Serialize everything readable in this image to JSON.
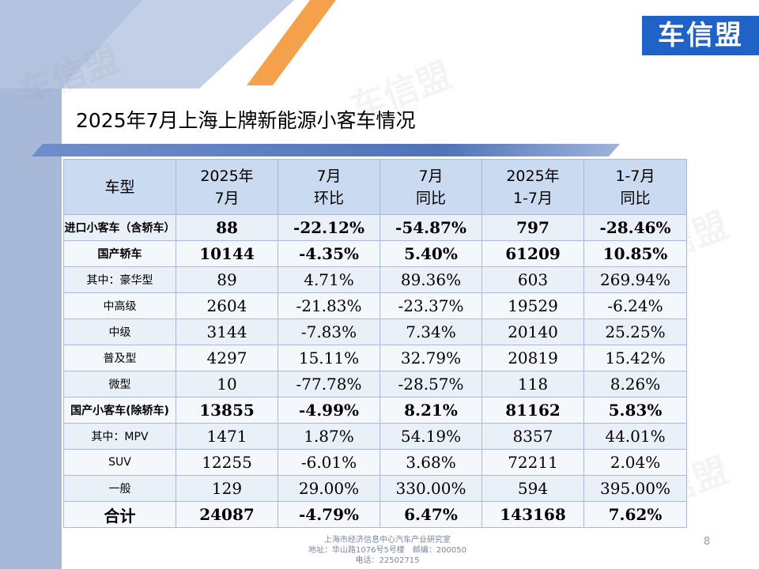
{
  "logo": "车信盟",
  "watermark": "车信盟",
  "title": "2025年7月上海上牌新能源小客车情况",
  "table": {
    "headers": [
      [
        "车型"
      ],
      [
        "2025年",
        "7月"
      ],
      [
        "7月",
        "环比"
      ],
      [
        "7月",
        "同比"
      ],
      [
        "2025年",
        "1-7月"
      ],
      [
        "1-7月",
        "同比"
      ]
    ],
    "rows": [
      {
        "name": "进口小客车（含轿车）",
        "bold": true,
        "values": [
          "88",
          "-22.12%",
          "-54.87%",
          "797",
          "-28.46%"
        ]
      },
      {
        "name": "国产轿车",
        "bold": true,
        "values": [
          "10144",
          "-4.35%",
          "5.40%",
          "61209",
          "10.85%"
        ]
      },
      {
        "name": "其中：豪华型",
        "bold": false,
        "values": [
          "89",
          "4.71%",
          "89.36%",
          "603",
          "269.94%"
        ]
      },
      {
        "name": "中高级",
        "bold": false,
        "values": [
          "2604",
          "-21.83%",
          "-23.37%",
          "19529",
          "-6.24%"
        ]
      },
      {
        "name": "中级",
        "bold": false,
        "values": [
          "3144",
          "-7.83%",
          "7.34%",
          "20140",
          "25.25%"
        ]
      },
      {
        "name": "普及型",
        "bold": false,
        "values": [
          "4297",
          "15.11%",
          "32.79%",
          "20819",
          "15.42%"
        ]
      },
      {
        "name": "微型",
        "bold": false,
        "values": [
          "10",
          "-77.78%",
          "-28.57%",
          "118",
          "8.26%"
        ]
      },
      {
        "name": "国产小客车(除轿车)",
        "bold": true,
        "values": [
          "13855",
          "-4.99%",
          "8.21%",
          "81162",
          "5.83%"
        ]
      },
      {
        "name": "其中：MPV",
        "bold": false,
        "values": [
          "1471",
          "1.87%",
          "54.19%",
          "8357",
          "44.01%"
        ]
      },
      {
        "name": "SUV",
        "bold": false,
        "values": [
          "12255",
          "-6.01%",
          "3.68%",
          "72211",
          "2.04%"
        ]
      },
      {
        "name": "一般",
        "bold": false,
        "values": [
          "129",
          "29.00%",
          "330.00%",
          "594",
          "395.00%"
        ]
      },
      {
        "name": "合计",
        "bold": true,
        "total": true,
        "values": [
          "24087",
          "-4.79%",
          "6.47%",
          "143168",
          "7.62%"
        ]
      }
    ]
  },
  "footer": {
    "line1": "上海市经济信息中心汽车产业研究室",
    "line2": "地址：华山路1076号5号楼　邮编：200050",
    "line3": "电话：22502715"
  },
  "page_number": "8",
  "colors": {
    "logo_bg": "#1f63c6",
    "side_panel": "#a8b8d8",
    "accent_orange": "#f5a04a",
    "header_fill": "#c9daf1"
  }
}
